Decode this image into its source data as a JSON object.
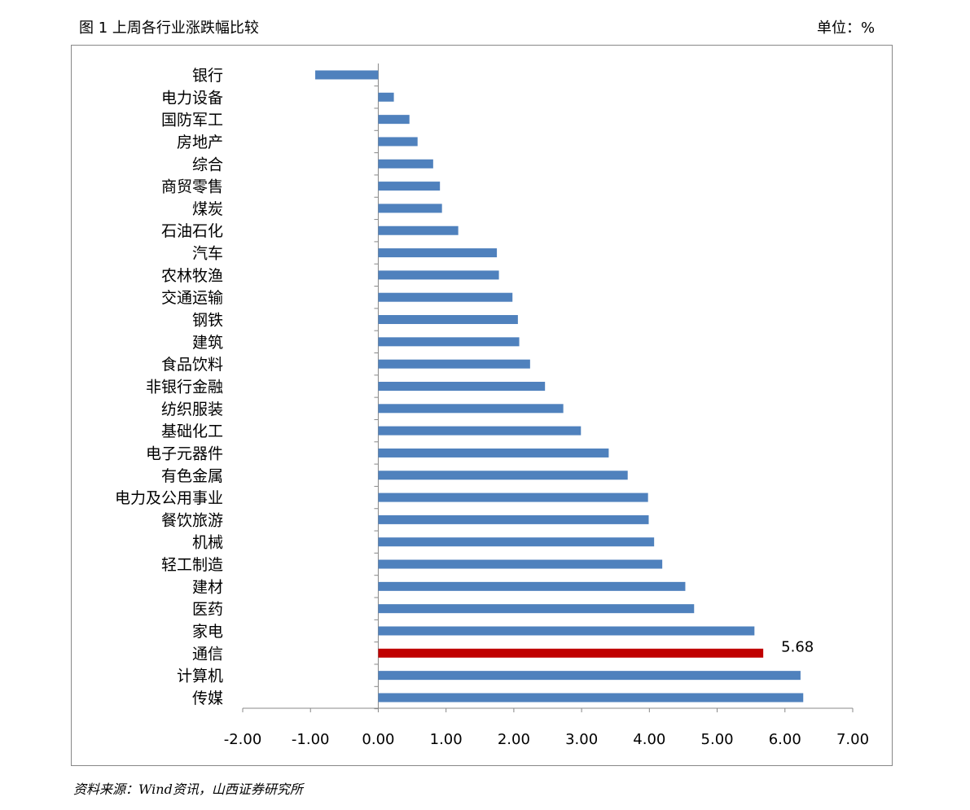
{
  "header": {
    "title": "图 1 上周各行业涨跌幅比较",
    "unit": "单位：%"
  },
  "footer": {
    "source": "资料来源：Wind资讯，山西证券研究所"
  },
  "chart_data": {
    "type": "bar",
    "orientation": "horizontal",
    "title": "",
    "xlabel": "",
    "ylabel": "",
    "xlim": [
      -2,
      7
    ],
    "xticks": [
      "-2.00",
      "-1.00",
      "0.00",
      "1.00",
      "2.00",
      "3.00",
      "4.00",
      "5.00",
      "6.00",
      "7.00"
    ],
    "grid": false,
    "categories": [
      "银行",
      "电力设备",
      "国防军工",
      "房地产",
      "综合",
      "商贸零售",
      "煤炭",
      "石油石化",
      "汽车",
      "农林牧渔",
      "交通运输",
      "钢铁",
      "建筑",
      "食品饮料",
      "非银行金融",
      "纺织服装",
      "基础化工",
      "电子元器件",
      "有色金属",
      "电力及公用事业",
      "餐饮旅游",
      "机械",
      "轻工制造",
      "建材",
      "医药",
      "家电",
      "通信",
      "计算机",
      "传媒"
    ],
    "values": [
      -0.93,
      0.23,
      0.46,
      0.58,
      0.81,
      0.91,
      0.94,
      1.18,
      1.75,
      1.78,
      1.98,
      2.06,
      2.08,
      2.24,
      2.46,
      2.73,
      2.99,
      3.4,
      3.68,
      3.98,
      3.99,
      4.07,
      4.19,
      4.53,
      4.66,
      5.55,
      5.68,
      6.23,
      6.27
    ],
    "highlight": {
      "category": "通信",
      "label": "5.68",
      "color": "#C00000"
    },
    "bar_color": "#4F81BD"
  }
}
